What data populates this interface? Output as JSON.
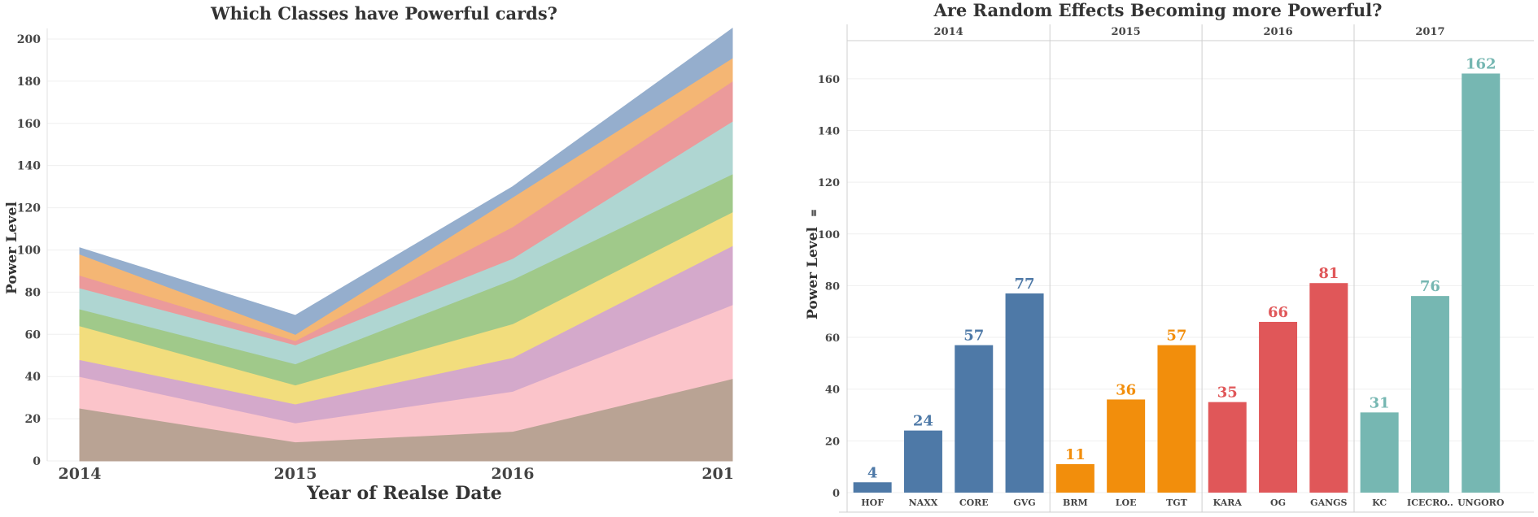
{
  "chart_data": [
    {
      "type": "area",
      "stacked": true,
      "title": "Which Classes have Powerful cards?",
      "xlabel": "Year of Realse Date",
      "ylabel": "Power Level",
      "x": [
        "2014",
        "2015",
        "2016",
        "201"
      ],
      "ylim": [
        0,
        205
      ],
      "yticks": [
        0,
        20,
        40,
        60,
        80,
        100,
        120,
        140,
        160,
        180,
        200
      ],
      "grid": true,
      "series": [
        {
          "color": "#b9a394",
          "values": [
            25,
            9,
            14,
            39
          ]
        },
        {
          "color": "#fbc4ca",
          "values": [
            15,
            9,
            19,
            35
          ]
        },
        {
          "color": "#d4a9cb",
          "values": [
            8,
            9,
            16,
            28
          ]
        },
        {
          "color": "#f2dd7d",
          "values": [
            16,
            9,
            16,
            16
          ]
        },
        {
          "color": "#a0c98a",
          "values": [
            8,
            10,
            21,
            18
          ]
        },
        {
          "color": "#afd6d2",
          "values": [
            10,
            9,
            10,
            25
          ]
        },
        {
          "color": "#eb9a9b",
          "values": [
            6,
            2,
            15,
            19
          ]
        },
        {
          "color": "#f4b674",
          "values": [
            10,
            3,
            14,
            11
          ]
        },
        {
          "color": "#95aecd",
          "values": [
            3,
            9,
            5,
            14
          ]
        }
      ]
    },
    {
      "type": "bar",
      "title": "Are Random Effects Becoming more Powerful?",
      "ylabel": "Power Level",
      "ylabel_suffix": "≡",
      "ylim": [
        0,
        170
      ],
      "yticks": [
        0,
        20,
        40,
        60,
        80,
        100,
        120,
        140,
        160
      ],
      "grid": true,
      "groups": [
        {
          "year": "2014",
          "color": "#4e79a7",
          "categories": [
            "HOF",
            "NAXX",
            "CORE",
            "GVG"
          ],
          "values": [
            4,
            24,
            57,
            77
          ]
        },
        {
          "year": "2015",
          "color": "#f28e0c",
          "categories": [
            "BRM",
            "LOE",
            "TGT"
          ],
          "values": [
            11,
            36,
            57
          ]
        },
        {
          "year": "2016",
          "color": "#e05759",
          "categories": [
            "KARA",
            "OG",
            "GANGS"
          ],
          "values": [
            35,
            66,
            81
          ]
        },
        {
          "year": "2017",
          "color": "#76b7b2",
          "categories": [
            "KC",
            "ICECRO..",
            "UNGORO"
          ],
          "values": [
            31,
            76,
            162
          ]
        }
      ]
    }
  ]
}
